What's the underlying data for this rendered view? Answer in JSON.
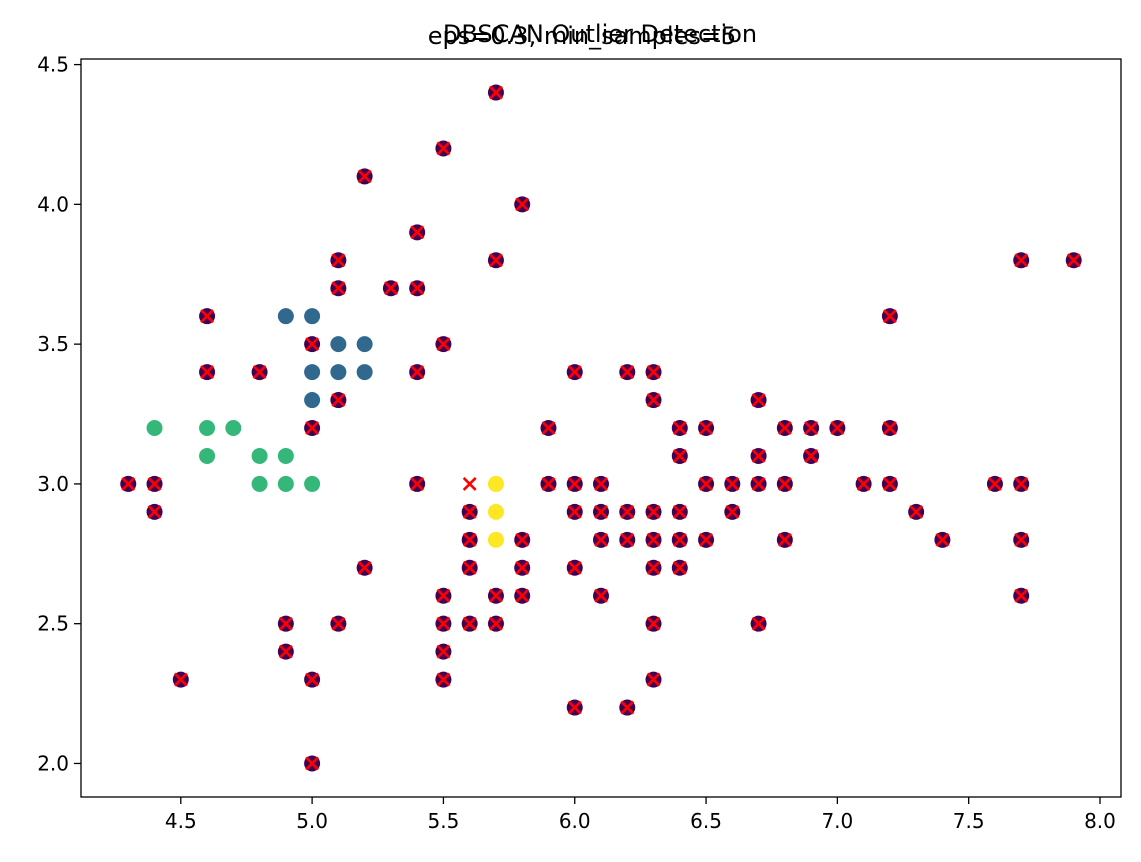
{
  "chart_data": {
    "type": "scatter",
    "title": "DBSCAN Outlier Detection",
    "subtitle": "eps=0.3, min_samples=5",
    "xlabel": "",
    "ylabel": "",
    "xlim": [
      4.12,
      8.08
    ],
    "ylim": [
      1.88,
      4.52
    ],
    "grid": false,
    "x_ticks": [
      4.5,
      5.0,
      5.5,
      6.0,
      6.5,
      7.0,
      7.5,
      8.0
    ],
    "x_tick_labels": [
      "4.5",
      "5.0",
      "5.5",
      "6.0",
      "6.5",
      "7.0",
      "7.5",
      "8.0"
    ],
    "y_ticks": [
      2.0,
      2.5,
      3.0,
      3.5,
      4.0,
      4.5
    ],
    "y_tick_labels": [
      "2.0",
      "2.5",
      "3.0",
      "3.5",
      "4.0",
      "4.5"
    ],
    "colors": {
      "noise": "#440154",
      "cluster_1": "#31688e",
      "cluster_2": "#35b779",
      "cluster_3": "#fde725",
      "outlier_marker": "#ff0000"
    },
    "series": [
      {
        "color_key": "cluster_1",
        "marker": "circle",
        "points": [
          [
            4.9,
            3.6
          ],
          [
            5.0,
            3.6
          ],
          [
            5.1,
            3.5
          ],
          [
            5.2,
            3.5
          ],
          [
            5.0,
            3.4
          ],
          [
            5.1,
            3.4
          ],
          [
            5.2,
            3.4
          ],
          [
            5.0,
            3.3
          ]
        ]
      },
      {
        "color_key": "cluster_2",
        "marker": "circle",
        "points": [
          [
            4.4,
            3.2
          ],
          [
            4.6,
            3.2
          ],
          [
            4.7,
            3.2
          ],
          [
            4.6,
            3.1
          ],
          [
            4.8,
            3.1
          ],
          [
            4.9,
            3.1
          ],
          [
            4.8,
            3.0
          ],
          [
            4.9,
            3.0
          ],
          [
            5.0,
            3.0
          ]
        ]
      },
      {
        "color_key": "cluster_3",
        "marker": "circle",
        "points": [
          [
            5.7,
            3.0
          ],
          [
            5.7,
            2.9
          ],
          [
            5.7,
            2.8
          ]
        ]
      },
      {
        "color_key": "noise",
        "marker": "circle-x",
        "points": [
          [
            5.7,
            4.4
          ],
          [
            5.5,
            4.2
          ],
          [
            5.2,
            4.1
          ],
          [
            5.8,
            4.0
          ],
          [
            5.4,
            3.9
          ],
          [
            5.1,
            3.8
          ],
          [
            5.7,
            3.8
          ],
          [
            7.7,
            3.8
          ],
          [
            7.9,
            3.8
          ],
          [
            5.1,
            3.7
          ],
          [
            5.3,
            3.7
          ],
          [
            5.4,
            3.7
          ],
          [
            4.6,
            3.6
          ],
          [
            7.2,
            3.6
          ],
          [
            5.0,
            3.5
          ],
          [
            5.5,
            3.5
          ],
          [
            4.6,
            3.4
          ],
          [
            4.8,
            3.4
          ],
          [
            5.4,
            3.4
          ],
          [
            6.0,
            3.4
          ],
          [
            6.2,
            3.4
          ],
          [
            6.3,
            3.4
          ],
          [
            5.1,
            3.3
          ],
          [
            6.3,
            3.3
          ],
          [
            6.7,
            3.3
          ],
          [
            5.0,
            3.2
          ],
          [
            5.9,
            3.2
          ],
          [
            6.4,
            3.2
          ],
          [
            6.5,
            3.2
          ],
          [
            6.8,
            3.2
          ],
          [
            6.9,
            3.2
          ],
          [
            7.0,
            3.2
          ],
          [
            7.2,
            3.2
          ],
          [
            6.4,
            3.1
          ],
          [
            6.7,
            3.1
          ],
          [
            6.9,
            3.1
          ],
          [
            4.3,
            3.0
          ],
          [
            4.4,
            3.0
          ],
          [
            5.4,
            3.0
          ],
          [
            5.9,
            3.0
          ],
          [
            6.0,
            3.0
          ],
          [
            6.1,
            3.0
          ],
          [
            6.5,
            3.0
          ],
          [
            6.6,
            3.0
          ],
          [
            6.7,
            3.0
          ],
          [
            6.8,
            3.0
          ],
          [
            7.1,
            3.0
          ],
          [
            7.2,
            3.0
          ],
          [
            7.6,
            3.0
          ],
          [
            7.7,
            3.0
          ],
          [
            4.4,
            2.9
          ],
          [
            5.6,
            2.9
          ],
          [
            6.0,
            2.9
          ],
          [
            6.1,
            2.9
          ],
          [
            6.2,
            2.9
          ],
          [
            6.3,
            2.9
          ],
          [
            6.4,
            2.9
          ],
          [
            6.6,
            2.9
          ],
          [
            7.3,
            2.9
          ],
          [
            5.6,
            2.8
          ],
          [
            5.8,
            2.8
          ],
          [
            6.1,
            2.8
          ],
          [
            6.2,
            2.8
          ],
          [
            6.3,
            2.8
          ],
          [
            6.4,
            2.8
          ],
          [
            6.5,
            2.8
          ],
          [
            6.8,
            2.8
          ],
          [
            7.4,
            2.8
          ],
          [
            7.7,
            2.8
          ],
          [
            5.2,
            2.7
          ],
          [
            5.6,
            2.7
          ],
          [
            5.8,
            2.7
          ],
          [
            6.0,
            2.7
          ],
          [
            6.3,
            2.7
          ],
          [
            6.4,
            2.7
          ],
          [
            5.5,
            2.6
          ],
          [
            5.7,
            2.6
          ],
          [
            5.8,
            2.6
          ],
          [
            6.1,
            2.6
          ],
          [
            7.7,
            2.6
          ],
          [
            4.9,
            2.5
          ],
          [
            5.1,
            2.5
          ],
          [
            5.5,
            2.5
          ],
          [
            5.6,
            2.5
          ],
          [
            5.7,
            2.5
          ],
          [
            6.3,
            2.5
          ],
          [
            6.7,
            2.5
          ],
          [
            4.9,
            2.4
          ],
          [
            5.5,
            2.4
          ],
          [
            4.5,
            2.3
          ],
          [
            5.0,
            2.3
          ],
          [
            5.5,
            2.3
          ],
          [
            6.3,
            2.3
          ],
          [
            6.0,
            2.2
          ],
          [
            6.2,
            2.2
          ],
          [
            5.0,
            2.0
          ]
        ]
      },
      {
        "color_key": "outlier_marker",
        "marker": "x",
        "points": [
          [
            5.6,
            3.0
          ]
        ]
      }
    ]
  }
}
